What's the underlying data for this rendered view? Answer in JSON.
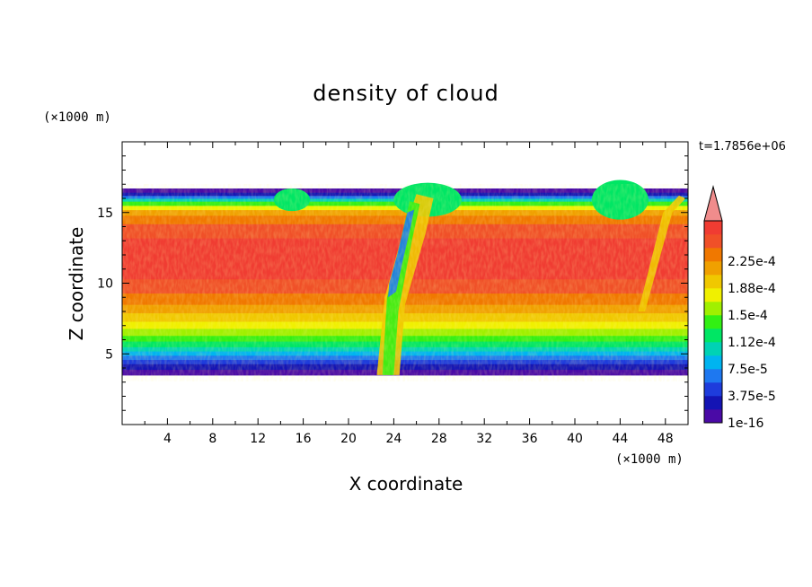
{
  "chart_data": {
    "type": "heatmap",
    "title": "density of cloud",
    "xlabel": "X coordinate",
    "ylabel": "Z coordinate",
    "x_unit": "(×1000 m)",
    "z_unit": "(×1000 m)",
    "time_label": "t=1.7856e+06",
    "xlim": [
      0,
      50
    ],
    "ylim": [
      0,
      20
    ],
    "x_ticks": [
      4,
      8,
      12,
      16,
      20,
      24,
      28,
      32,
      36,
      40,
      44,
      48
    ],
    "y_ticks": [
      5,
      10,
      15
    ],
    "cloud_base": 3.5,
    "cloud_top": 16.5,
    "colorbar": {
      "levels": [
        "1e-16",
        "3.75e-5",
        "7.5e-5",
        "1.12e-4",
        "1.5e-4",
        "1.88e-4",
        "2.25e-4"
      ],
      "colors": [
        "#4a0aa6",
        "#1414b4",
        "#1e3cdc",
        "#1e78f0",
        "#00b4f0",
        "#00d2b4",
        "#00e664",
        "#32f014",
        "#a0f000",
        "#f0f000",
        "#f0c800",
        "#f0a000",
        "#f07800",
        "#f05028",
        "#f03c32",
        "#f08c8c"
      ]
    }
  }
}
